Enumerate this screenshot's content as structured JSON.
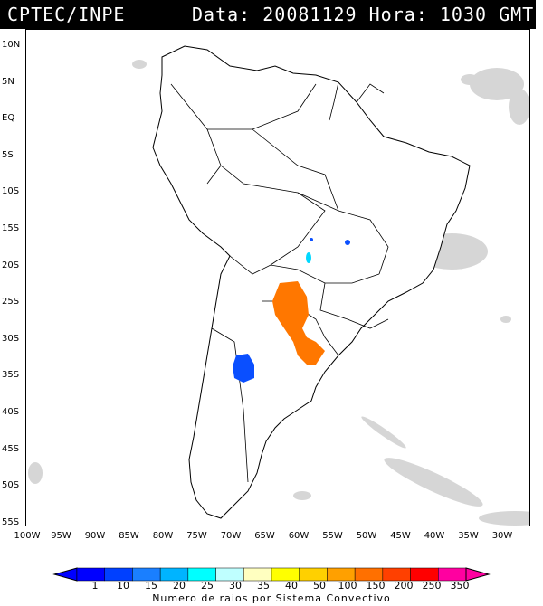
{
  "header": {
    "org": "CPTEC/INPE",
    "datetime": "Data: 20081129 Hora: 1030 GMT"
  },
  "map": {
    "lat_labels": [
      "10N",
      "5N",
      "EQ",
      "5S",
      "10S",
      "15S",
      "20S",
      "25S",
      "30S",
      "35S",
      "40S",
      "45S",
      "50S",
      "55S"
    ],
    "lon_labels": [
      "100W",
      "95W",
      "90W",
      "85W",
      "80W",
      "75W",
      "70W",
      "65W",
      "60W",
      "55W",
      "50W",
      "45W",
      "40W",
      "35W",
      "30W"
    ]
  },
  "legend": {
    "title": "Numero de raios por Sistema Convectivo",
    "labels": [
      "1",
      "10",
      "15",
      "20",
      "25",
      "30",
      "35",
      "40",
      "50",
      "100",
      "150",
      "200",
      "250",
      "350"
    ],
    "colors": [
      "#0000ff",
      "#0040ff",
      "#1a7fff",
      "#00b4ff",
      "#00ffff",
      "#bfffff",
      "#ffffc0",
      "#ffff00",
      "#ffd000",
      "#ffa000",
      "#ff7000",
      "#ff4000",
      "#ff0000",
      "#ff00a0"
    ]
  },
  "storms": {
    "orange_color": "#ff7700",
    "blue_color": "#0a4fff",
    "cyan_color": "#00d8ff"
  }
}
